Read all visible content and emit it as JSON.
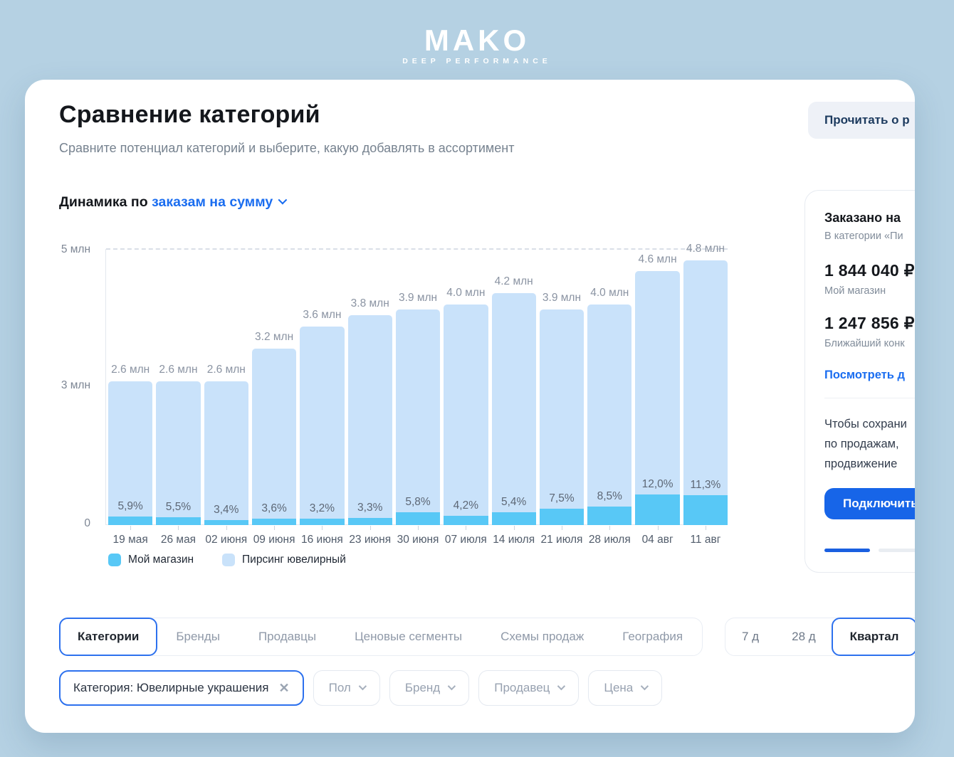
{
  "logo": {
    "brand": "MAKO",
    "tagline": "DEEP PERFORMANCE"
  },
  "header": {
    "title": "Сравнение категорий",
    "subtitle": "Сравните потенциал категорий и выберите, какую добавлять в ассортимент",
    "read_about_button": "Прочитать о р"
  },
  "chart": {
    "title_prefix": "Динамика по",
    "metric_selector": "заказам на сумму"
  },
  "chart_data": {
    "type": "bar",
    "stacked": true,
    "title": "Динамика по заказам на сумму",
    "categories": [
      "19 мая",
      "26 мая",
      "02 июня",
      "09 июня",
      "16 июня",
      "23 июня",
      "30 июня",
      "07 июля",
      "14 июля",
      "21 июля",
      "28 июля",
      "04 авг",
      "11 авг"
    ],
    "totals_mln": [
      2.6,
      2.6,
      2.6,
      3.2,
      3.6,
      3.8,
      3.9,
      4.0,
      4.2,
      3.9,
      4.0,
      4.6,
      4.8
    ],
    "total_labels": [
      "2.6 млн",
      "2.6 млн",
      "2.6 млн",
      "3.2 млн",
      "3.6 млн",
      "3.8 млн",
      "3.9 млн",
      "4.0 млн",
      "4.2 млн",
      "3.9 млн",
      "4.0 млн",
      "4.6 млн",
      "4.8 млн"
    ],
    "my_store_share_percent": [
      5.9,
      5.5,
      3.4,
      3.6,
      3.2,
      3.3,
      5.8,
      4.2,
      5.4,
      7.5,
      8.5,
      12.0,
      11.3
    ],
    "percent_labels": [
      "5,9%",
      "5,5%",
      "3,4%",
      "3,6%",
      "3,2%",
      "3,3%",
      "5,8%",
      "4,2%",
      "5,4%",
      "7,5%",
      "8,5%",
      "12,0%",
      "11,3%"
    ],
    "series": [
      {
        "name": "Мой магазин",
        "color": "#58c8f6"
      },
      {
        "name": "Пирсинг ювелирный",
        "color": "#c9e2fa"
      }
    ],
    "ylim_mln": [
      0,
      5
    ],
    "y_tick_labels": [
      "5 млн",
      "3 млн",
      "0"
    ],
    "grid": "dashed-line-at-5-mln",
    "legend_position": "bottom-left"
  },
  "sidebar": {
    "heading": "Заказано на",
    "subheading": "В категории «Пи",
    "my_amount": "1 844 040 ₽",
    "my_label": "Мой магазин",
    "competitor_amount": "1 247 856 ₽",
    "competitor_plus": "+",
    "competitor_label": "Ближайший конк",
    "details_link": "Посмотреть д",
    "promo_lines": [
      "Чтобы сохрани",
      "по продажам,",
      "продвижение"
    ],
    "connect_button": "Подключить"
  },
  "tabs": {
    "items": [
      {
        "label": "Категории",
        "selected": true
      },
      {
        "label": "Бренды",
        "selected": false
      },
      {
        "label": "Продавцы",
        "selected": false
      },
      {
        "label": "Ценовые сегменты",
        "selected": false
      },
      {
        "label": "Схемы продаж",
        "selected": false
      },
      {
        "label": "География",
        "selected": false
      }
    ]
  },
  "periods": {
    "items": [
      {
        "label": "7 д",
        "selected": false
      },
      {
        "label": "28 д",
        "selected": false
      },
      {
        "label": "Квартал",
        "selected": true
      }
    ]
  },
  "filters": {
    "active_chip": {
      "label": "Категория: Ювелирные украшения",
      "close_icon": "✕"
    },
    "dropdowns": [
      {
        "label": "Пол"
      },
      {
        "label": "Бренд"
      },
      {
        "label": "Продавец"
      },
      {
        "label": "Цена"
      }
    ]
  },
  "colors": {
    "background": "#b5d1e3",
    "accent_blue": "#1a6df0",
    "selected_border_blue": "#2d71ee",
    "bar_light": "#c9e2fa",
    "bar_dark": "#58c8f6",
    "connect_button_blue": "#1765e8",
    "positive_green": "#27ae60"
  }
}
